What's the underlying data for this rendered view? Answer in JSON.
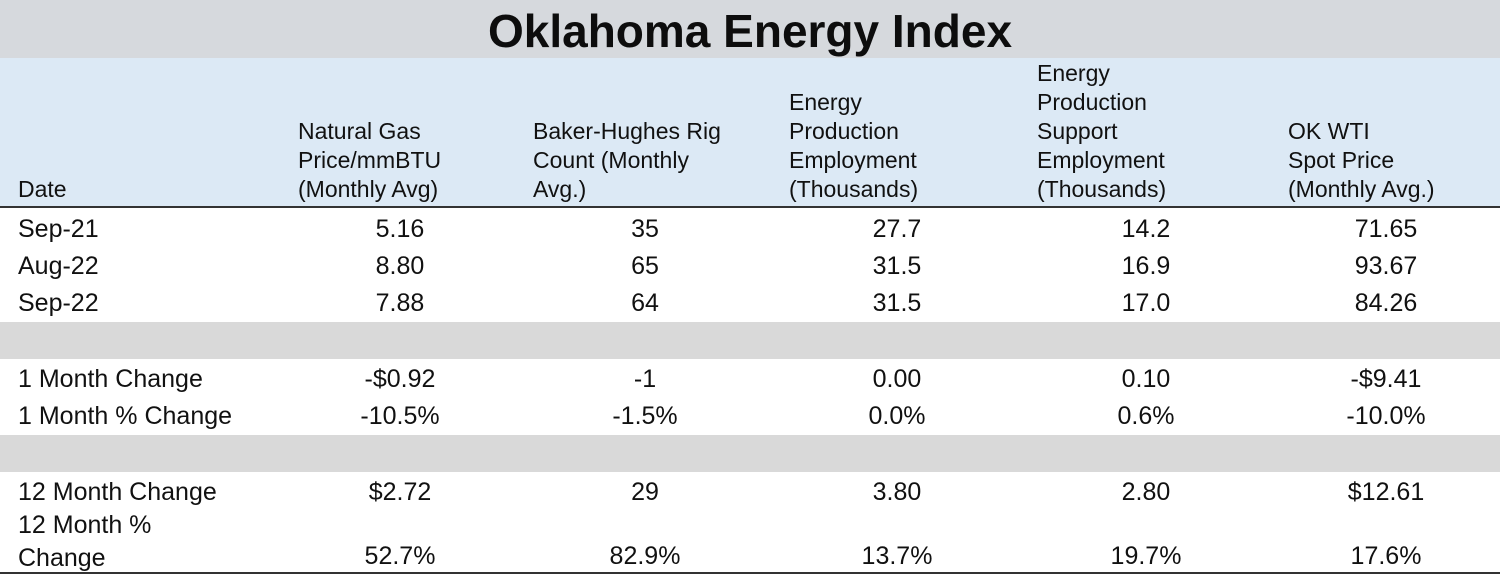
{
  "title": "Oklahoma Energy Index",
  "columns": [
    {
      "lines": [
        "Date"
      ]
    },
    {
      "lines": [
        "Natural Gas",
        "Price/mmBTU",
        "(Monthly Avg)"
      ]
    },
    {
      "lines": [
        "Baker-Hughes Rig",
        "Count (Monthly",
        "Avg.)"
      ]
    },
    {
      "lines": [
        "Energy",
        "Production",
        "Employment",
        "(Thousands)"
      ]
    },
    {
      "lines": [
        "Energy",
        "Production",
        "Support",
        "Employment",
        "(Thousands)"
      ]
    },
    {
      "lines": [
        "OK WTI",
        "Spot Price",
        "(Monthly Avg.)"
      ]
    }
  ],
  "rows": [
    {
      "label": "Sep-21",
      "values": [
        "5.16",
        "35",
        "27.7",
        "14.2",
        "71.65"
      ]
    },
    {
      "label": "Aug-22",
      "values": [
        "8.80",
        "65",
        "31.5",
        "16.9",
        "93.67"
      ]
    },
    {
      "label": "Sep-22",
      "values": [
        "7.88",
        "64",
        "31.5",
        "17.0",
        "84.26"
      ]
    },
    {
      "label": "1 Month Change",
      "values": [
        "-$0.92",
        "-1",
        "0.00",
        "0.10",
        "-$9.41"
      ]
    },
    {
      "label": "1 Month % Change",
      "values": [
        "-10.5%",
        "-1.5%",
        "0.0%",
        "0.6%",
        "-10.0%"
      ]
    },
    {
      "label": "12 Month Change",
      "values": [
        "$2.72",
        "29",
        "3.80",
        "2.80",
        "$12.61"
      ]
    },
    {
      "label_lines": [
        "12 Month %",
        "Change"
      ],
      "values": [
        "52.7%",
        "82.9%",
        "13.7%",
        "19.7%",
        "17.6%"
      ]
    }
  ]
}
